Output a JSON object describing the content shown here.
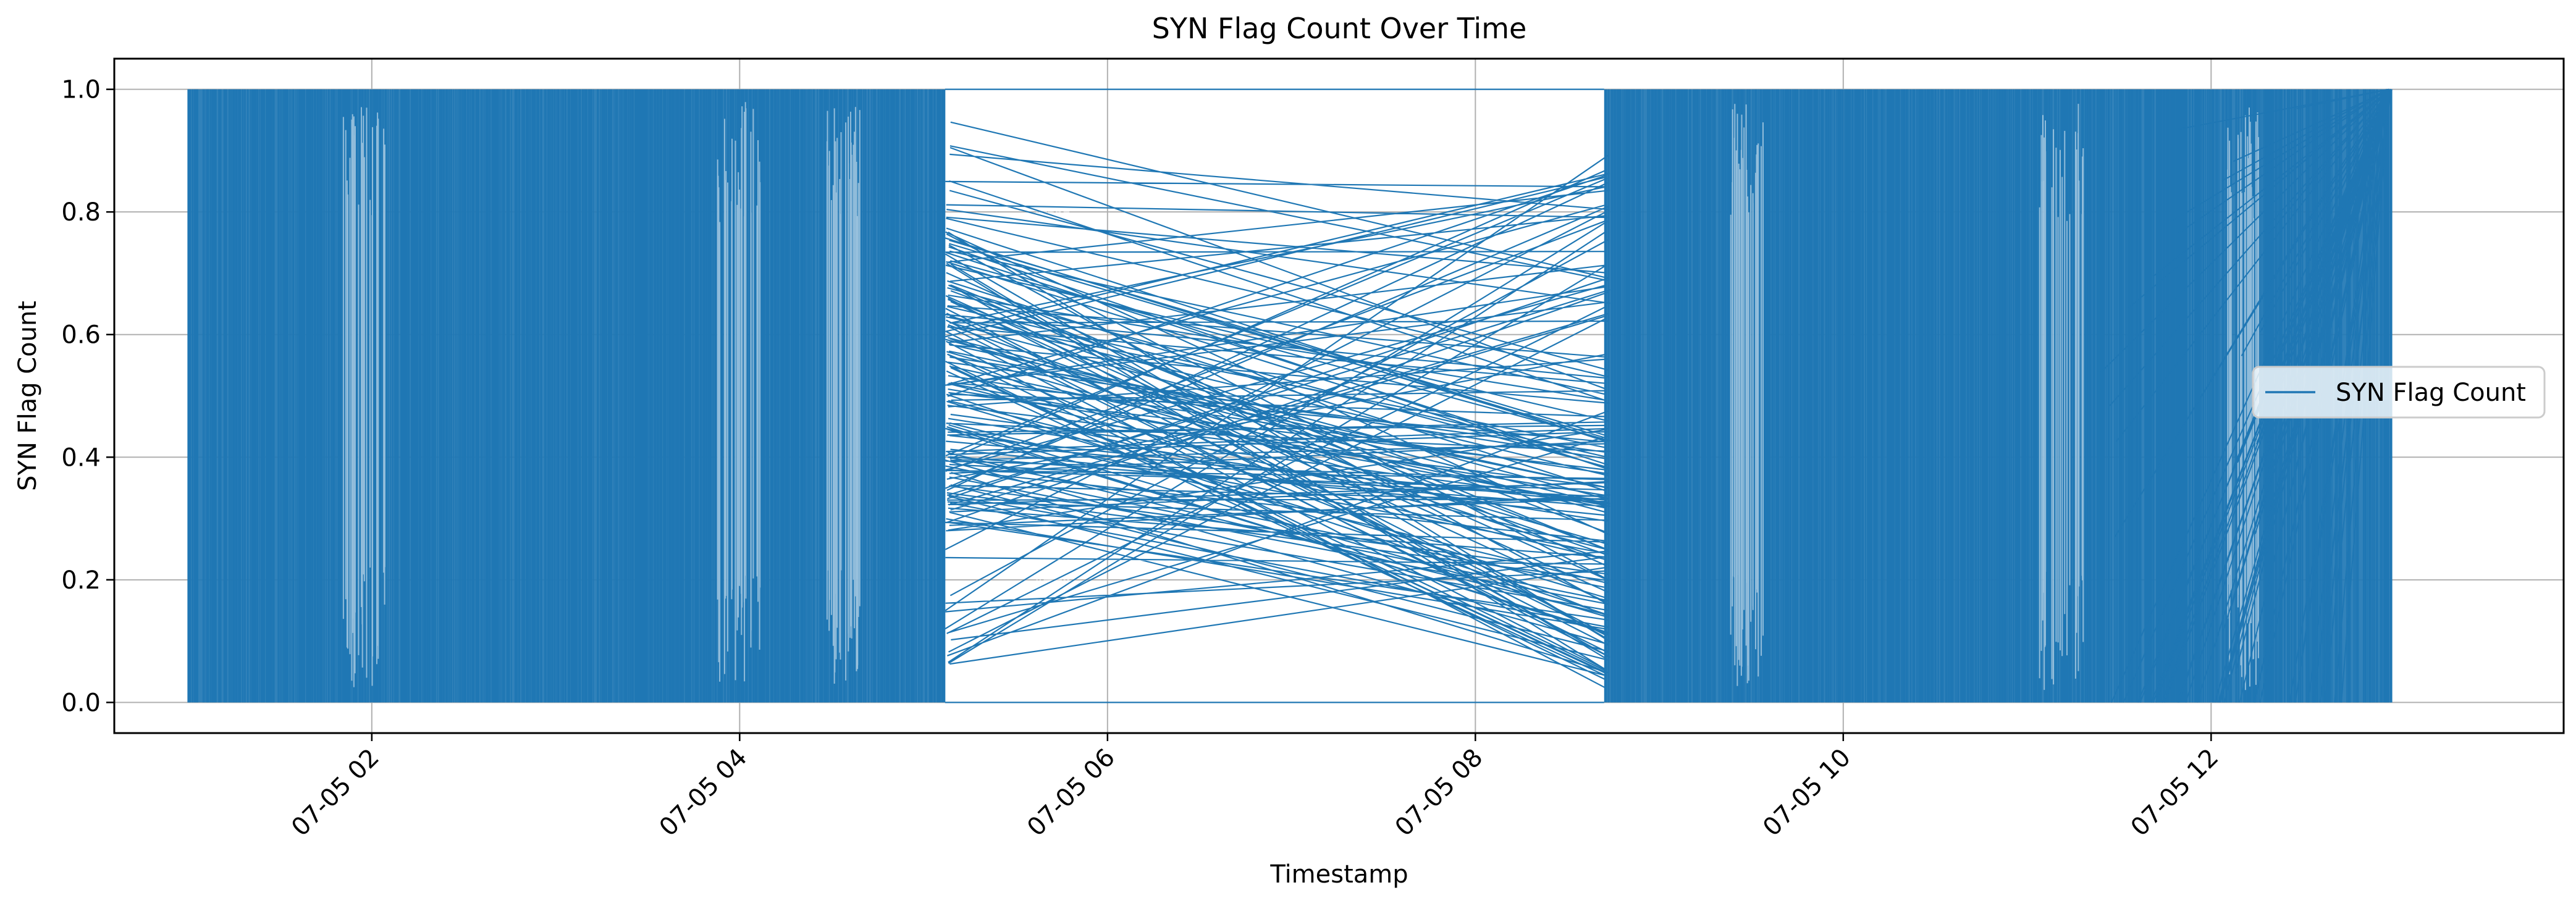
{
  "chart_data": {
    "type": "line",
    "title": "SYN Flag Count Over Time",
    "xlabel": "Timestamp",
    "ylabel": "SYN Flag Count",
    "x_ticks": [
      "07-05 02",
      "07-05 04",
      "07-05 06",
      "07-05 08",
      "07-05 10",
      "07-05 12"
    ],
    "x_tick_values": [
      "2017-07-05 02:00",
      "2017-07-05 04:00",
      "2017-07-05 06:00",
      "2017-07-05 08:00",
      "2017-07-05 10:00",
      "2017-07-05 12:00"
    ],
    "y_ticks": [
      "0.0",
      "0.2",
      "0.4",
      "0.6",
      "0.8",
      "1.0"
    ],
    "y_tick_values": [
      0.0,
      0.2,
      0.4,
      0.6,
      0.8,
      1.0
    ],
    "xlim": [
      "2017-07-05 00:36",
      "2017-07-05 13:55"
    ],
    "ylim": [
      -0.05,
      1.05
    ],
    "grid": true,
    "legend_position": "center-right",
    "series": [
      {
        "name": "SYN Flag Count",
        "color": "#1f77b4",
        "values": [
          0,
          1
        ],
        "time_range": [
          "2017-07-05 01:00",
          "2017-07-05 12:59"
        ],
        "dense_time_blocks": [
          [
            "2017-07-05 01:00",
            "2017-07-05 05:07"
          ],
          [
            "2017-07-05 08:42",
            "2017-07-05 12:59"
          ]
        ]
      }
    ]
  }
}
